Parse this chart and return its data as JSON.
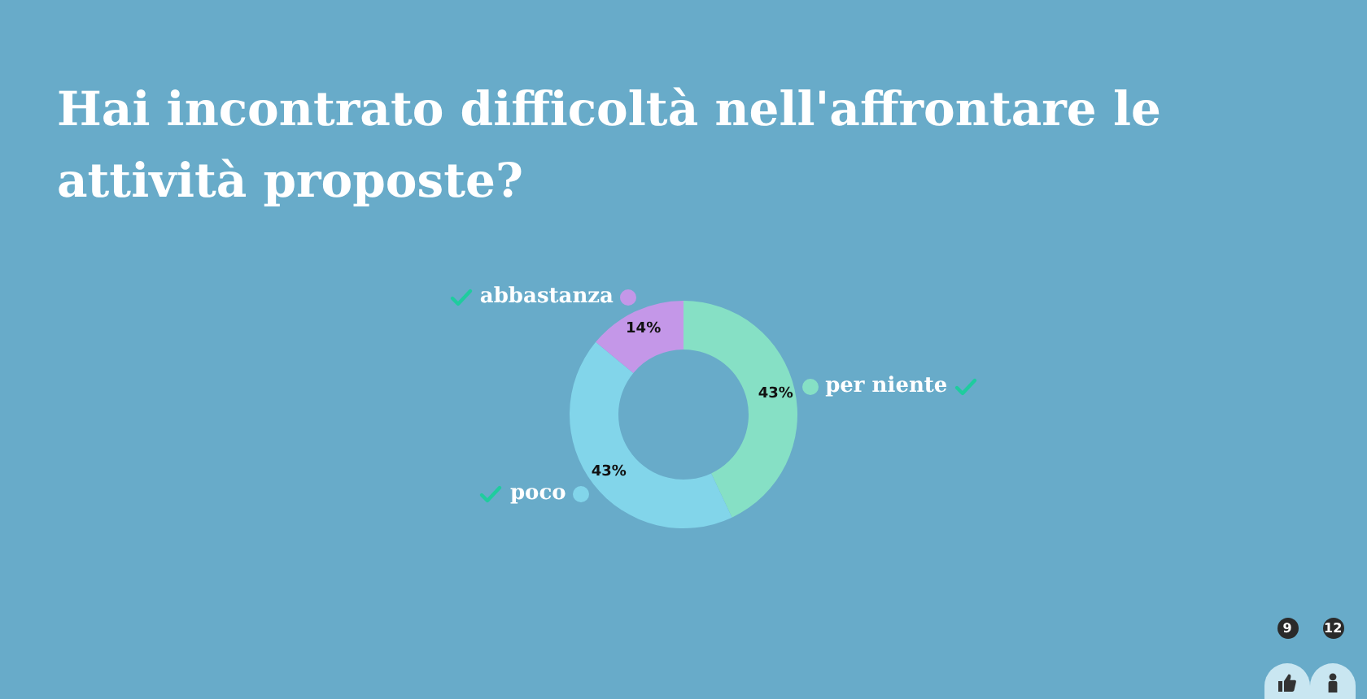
{
  "chart_data": {
    "type": "donut",
    "title": "Hai incontrato difficoltà nell'affrontare le attività proposte?",
    "categories": [
      "per niente",
      "poco",
      "abbastanza"
    ],
    "values": [
      43,
      43,
      14
    ],
    "colors": [
      "#86e0c5",
      "#82d5ea",
      "#c497e8"
    ],
    "value_labels": [
      "43%",
      "43%",
      "14%"
    ],
    "annotations": [
      "9",
      "12"
    ]
  }
}
